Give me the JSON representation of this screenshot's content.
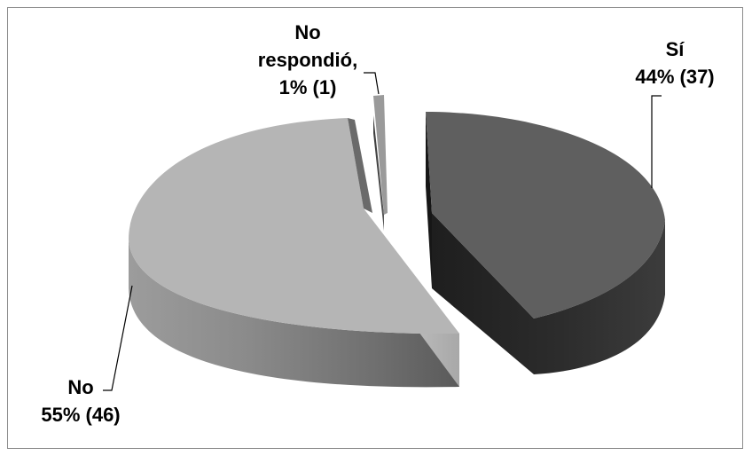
{
  "chart_data": {
    "type": "pie",
    "title": "",
    "style": "3d-exploded",
    "slices": [
      {
        "label_lines": [
          "Sí",
          "44% (37)"
        ],
        "category": "Sí",
        "percent": 44,
        "count": 37,
        "color": "#5f5f5f"
      },
      {
        "label_lines": [
          "No",
          "55% (46)"
        ],
        "category": "No",
        "percent": 55,
        "count": 46,
        "color": "#b5b5b5"
      },
      {
        "label_lines": [
          "No",
          "respondió,",
          "1% (1)"
        ],
        "category": "No respondió",
        "percent": 1,
        "count": 1,
        "color": "#9a9a9a"
      }
    ],
    "legend": "none",
    "grid": false
  }
}
